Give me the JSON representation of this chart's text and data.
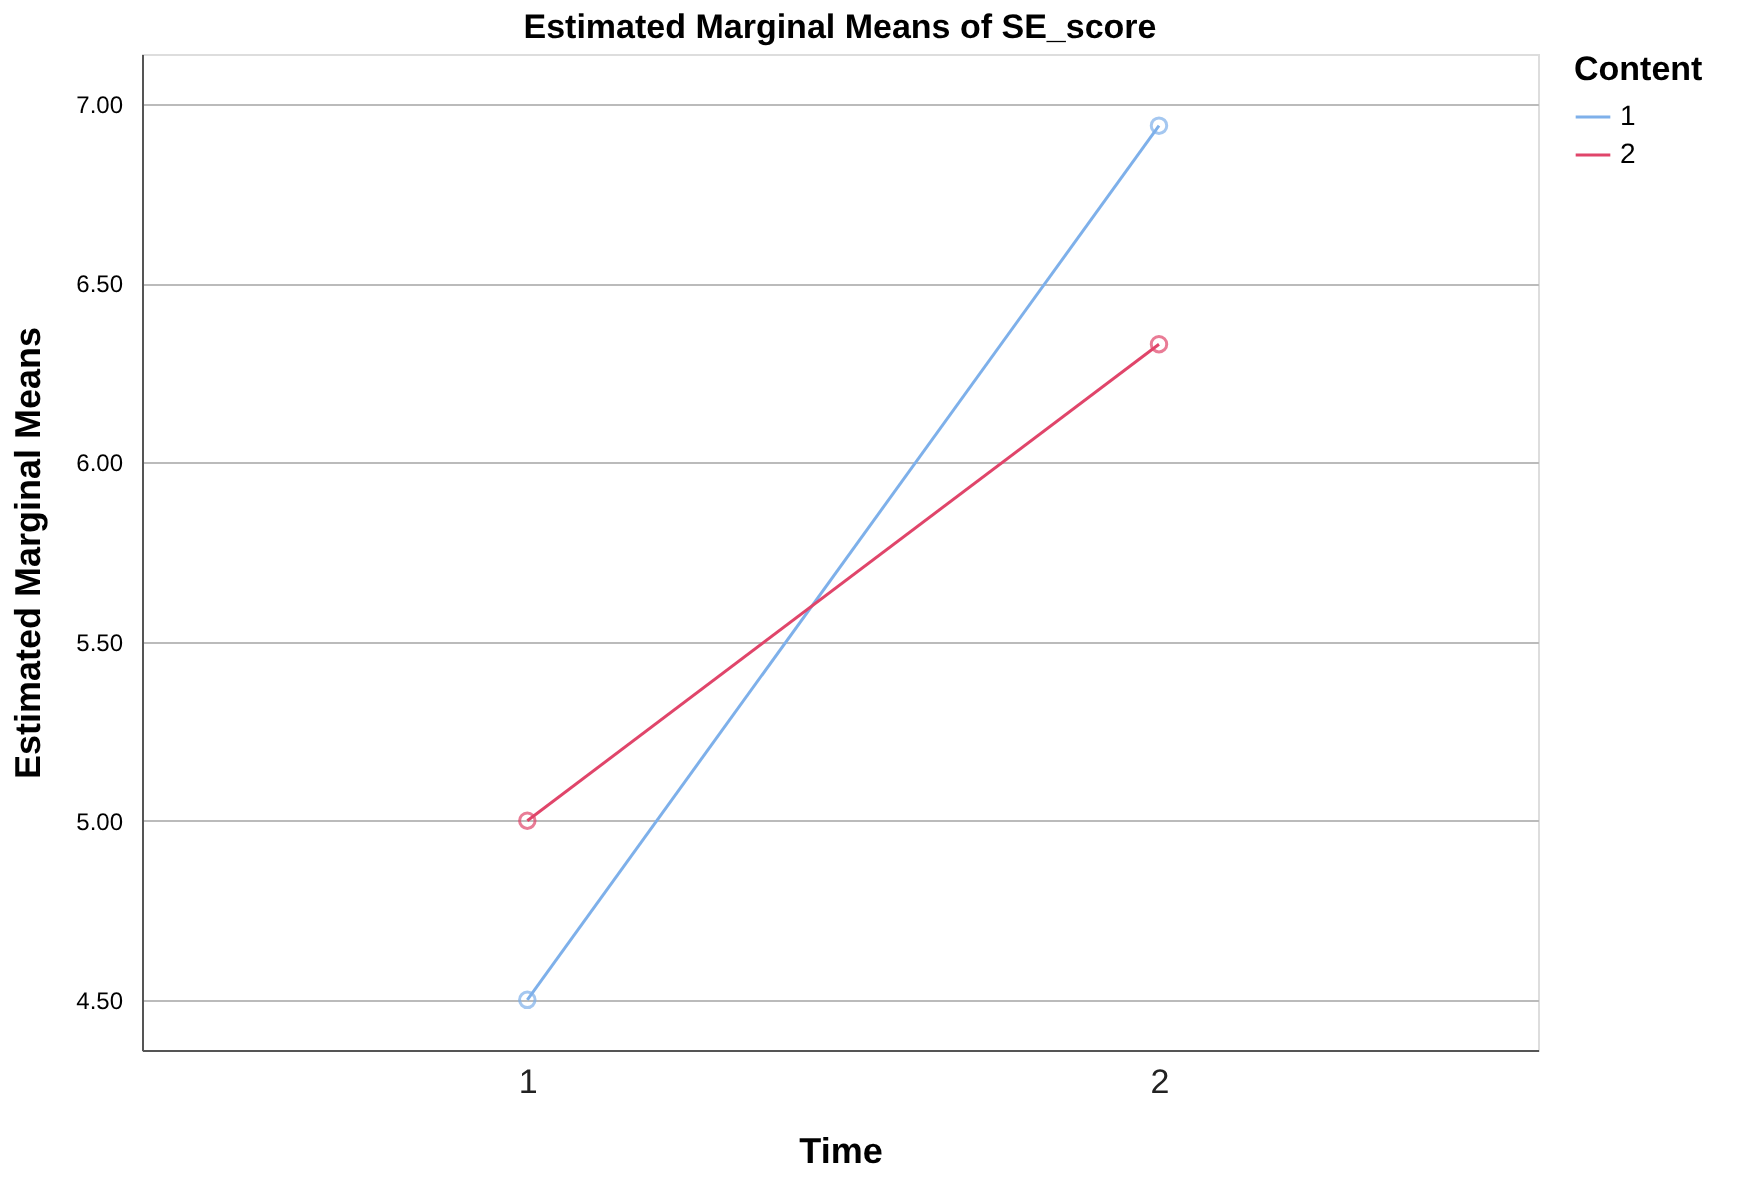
{
  "chart_data": {
    "type": "line",
    "title": "Estimated Marginal Means of SE_score",
    "xlabel": "Time",
    "ylabel": "Estimated Marginal Means",
    "legend_title": "Content",
    "categories": [
      "1",
      "2"
    ],
    "series": [
      {
        "name": "1",
        "color": "#7eb0ea",
        "values": [
          4.5,
          6.94
        ]
      },
      {
        "name": "2",
        "color": "#e0456a",
        "values": [
          5.0,
          6.33
        ]
      }
    ],
    "ylim": [
      4.36,
      7.14
    ],
    "yticks": [
      {
        "value": 4.5,
        "label": "4.50"
      },
      {
        "value": 5.0,
        "label": "5.00"
      },
      {
        "value": 5.5,
        "label": "5.50"
      },
      {
        "value": 6.0,
        "label": "6.00"
      },
      {
        "value": 6.5,
        "label": "6.50"
      },
      {
        "value": 7.0,
        "label": "7.00"
      }
    ],
    "grid": "y",
    "legend": "top right",
    "marker": "circle",
    "line_style": "solid"
  }
}
